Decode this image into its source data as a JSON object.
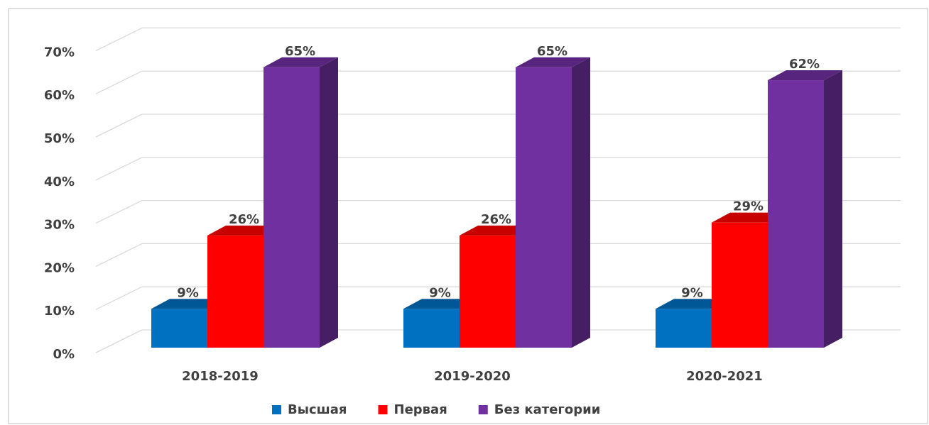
{
  "chart_data": {
    "type": "bar3d",
    "categories": [
      "2018-2019",
      "2019-2020",
      "2020-2021"
    ],
    "series": [
      {
        "name": "Высшая",
        "color": "#0070c0",
        "values": [
          9,
          9,
          9
        ],
        "value_labels": [
          "9%",
          "9%",
          "9%"
        ]
      },
      {
        "name": "Первая",
        "color": "#ff0000",
        "values": [
          26,
          26,
          29
        ],
        "value_labels": [
          "26%",
          "26%",
          "29%"
        ]
      },
      {
        "name": "Без категории",
        "color": "#7030a0",
        "values": [
          65,
          65,
          62
        ],
        "value_labels": [
          "65%",
          "65%",
          "62%"
        ]
      }
    ],
    "ylim": [
      0,
      70
    ],
    "yticks": [
      {
        "value": 0,
        "label": "0%"
      },
      {
        "value": 10,
        "label": "10%"
      },
      {
        "value": 20,
        "label": "20%"
      },
      {
        "value": 30,
        "label": "30%"
      },
      {
        "value": 40,
        "label": "40%"
      },
      {
        "value": 50,
        "label": "50%"
      },
      {
        "value": 60,
        "label": "60%"
      },
      {
        "value": 70,
        "label": "70%"
      }
    ],
    "grid": true,
    "legend": "bottom"
  }
}
